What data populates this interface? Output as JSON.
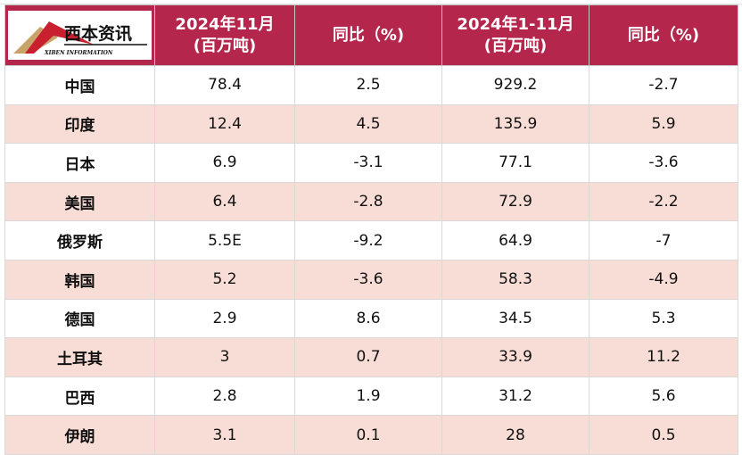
{
  "header": {
    "logo_text": "西本资讯",
    "logo_subtext": "XIBEN INFORMATION",
    "col1": "2024年11月",
    "col1_unit": "(百万吨)",
    "col2": "同比（%)",
    "col3": "2024年1-11月",
    "col3_unit": "(百万吨)",
    "col4": "同比（%)"
  },
  "colors": {
    "header": "#b5264c",
    "stripe": "#f8ddd6"
  },
  "rows": [
    {
      "country": "中国",
      "nov": "78.4",
      "nov_yoy": "2.5",
      "ytd": "929.2",
      "ytd_yoy": "-2.7"
    },
    {
      "country": "印度",
      "nov": "12.4",
      "nov_yoy": "4.5",
      "ytd": "135.9",
      "ytd_yoy": "5.9"
    },
    {
      "country": "日本",
      "nov": "6.9",
      "nov_yoy": "-3.1",
      "ytd": "77.1",
      "ytd_yoy": "-3.6"
    },
    {
      "country": "美国",
      "nov": "6.4",
      "nov_yoy": "-2.8",
      "ytd": "72.9",
      "ytd_yoy": "-2.2"
    },
    {
      "country": "俄罗斯",
      "nov": "5.5E",
      "nov_yoy": "-9.2",
      "ytd": "64.9",
      "ytd_yoy": "-7"
    },
    {
      "country": "韩国",
      "nov": "5.2",
      "nov_yoy": "-3.6",
      "ytd": "58.3",
      "ytd_yoy": "-4.9"
    },
    {
      "country": "德国",
      "nov": "2.9",
      "nov_yoy": "8.6",
      "ytd": "34.5",
      "ytd_yoy": "5.3"
    },
    {
      "country": "土耳其",
      "nov": "3",
      "nov_yoy": "0.7",
      "ytd": "33.9",
      "ytd_yoy": "11.2"
    },
    {
      "country": "巴西",
      "nov": "2.8",
      "nov_yoy": "1.9",
      "ytd": "31.2",
      "ytd_yoy": "5.6"
    },
    {
      "country": "伊朗",
      "nov": "3.1",
      "nov_yoy": "0.1",
      "ytd": "28",
      "ytd_yoy": "0.5"
    }
  ]
}
